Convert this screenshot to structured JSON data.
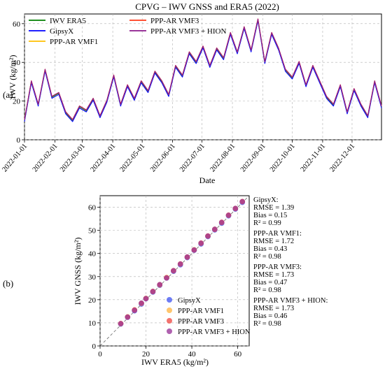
{
  "figure": {
    "panel_a_label": "(a)",
    "panel_b_label": "(b)"
  },
  "chart_data": [
    {
      "type": "line",
      "title": "CPVG – IWV GNSS and ERA5 (2022)",
      "xlabel": "Date",
      "ylabel": "IWV (kg/m²)",
      "xlim": [
        "2022-01-01",
        "2022-12-31"
      ],
      "ylim": [
        0,
        65
      ],
      "yticks": [
        0,
        20,
        40,
        60
      ],
      "xticks": [
        "2022-01-01",
        "2022-02-01",
        "2022-03-01",
        "2022-04-01",
        "2022-05-01",
        "2022-06-01",
        "2022-07-01",
        "2022-08-01",
        "2022-09-01",
        "2022-10-01",
        "2022-11-01",
        "2022-12-01"
      ],
      "grid": true,
      "legend_position": "top-left",
      "series": [
        {
          "name": "IWV ERA5",
          "color": "#008000"
        },
        {
          "name": "GipsyX",
          "color": "#0000ff"
        },
        {
          "name": "PPP-AR VMF1",
          "color": "#ffbf00"
        },
        {
          "name": "PPP-AR VMF3",
          "color": "#ff3a1a"
        },
        {
          "name": "PPP-AR VMF3 + HION",
          "color": "#8b1a8b"
        }
      ],
      "x": [
        "2022-01-01",
        "2022-01-08",
        "2022-01-15",
        "2022-01-22",
        "2022-01-29",
        "2022-02-05",
        "2022-02-12",
        "2022-02-19",
        "2022-02-26",
        "2022-03-05",
        "2022-03-12",
        "2022-03-19",
        "2022-03-26",
        "2022-04-02",
        "2022-04-09",
        "2022-04-16",
        "2022-04-23",
        "2022-04-30",
        "2022-05-07",
        "2022-05-14",
        "2022-05-21",
        "2022-05-28",
        "2022-06-04",
        "2022-06-11",
        "2022-06-18",
        "2022-06-25",
        "2022-07-02",
        "2022-07-09",
        "2022-07-16",
        "2022-07-23",
        "2022-07-30",
        "2022-08-06",
        "2022-08-13",
        "2022-08-20",
        "2022-08-27",
        "2022-09-03",
        "2022-09-10",
        "2022-09-17",
        "2022-09-24",
        "2022-10-01",
        "2022-10-08",
        "2022-10-15",
        "2022-10-22",
        "2022-10-29",
        "2022-11-05",
        "2022-11-12",
        "2022-11-19",
        "2022-11-26",
        "2022-12-03",
        "2022-12-10",
        "2022-12-17",
        "2022-12-24",
        "2022-12-31"
      ],
      "values": [
        10,
        30,
        18,
        36,
        22,
        24,
        14,
        10,
        17,
        15,
        21,
        12,
        20,
        33,
        18,
        28,
        21,
        30,
        25,
        35,
        30,
        23,
        38,
        33,
        45,
        40,
        48,
        38,
        47,
        42,
        55,
        45,
        58,
        46,
        62,
        40,
        55,
        47,
        36,
        32,
        40,
        28,
        38,
        30,
        22,
        18,
        28,
        14,
        26,
        18,
        12,
        30,
        17
      ]
    },
    {
      "type": "scatter",
      "xlabel": "IWV ERA5 (kg/m²)",
      "ylabel": "IWV GNSS (kg/m²)",
      "xlim": [
        0,
        65
      ],
      "ylim": [
        0,
        65
      ],
      "xticks": [
        0,
        20,
        40,
        60
      ],
      "yticks": [
        0,
        10,
        20,
        30,
        40,
        50,
        60
      ],
      "grid": true,
      "legend_position": "bottom-right",
      "series": [
        {
          "name": "GipsyX",
          "color": "#4a5cf2",
          "x": [
            9,
            12,
            15,
            18,
            20,
            23,
            26,
            29,
            32,
            35,
            38,
            41,
            44,
            47,
            50,
            53,
            56,
            59,
            62
          ],
          "y": [
            9.5,
            12.4,
            15.2,
            18.1,
            20.4,
            23.3,
            26.2,
            29.4,
            32.3,
            35.1,
            38.2,
            41.4,
            44.1,
            47.3,
            50.2,
            53.1,
            56.3,
            59.2,
            62.1
          ]
        },
        {
          "name": "PPP-AR VMF1",
          "color": "#ffb84a",
          "x": [
            9,
            12,
            15,
            18,
            20,
            23,
            26,
            29,
            32,
            35,
            38,
            41,
            44,
            47,
            50,
            53,
            56,
            59,
            62
          ],
          "y": [
            9.6,
            12.6,
            15.5,
            18.4,
            20.6,
            23.5,
            26.4,
            29.6,
            32.5,
            35.4,
            38.5,
            41.6,
            44.4,
            47.5,
            50.5,
            53.4,
            56.5,
            59.5,
            62.4
          ]
        },
        {
          "name": "PPP-AR VMF3",
          "color": "#f0504a",
          "x": [
            9,
            12,
            15,
            18,
            20,
            23,
            26,
            29,
            32,
            35,
            38,
            41,
            44,
            47,
            50,
            53,
            56,
            59,
            62
          ],
          "y": [
            9.7,
            12.5,
            15.6,
            18.5,
            20.5,
            23.6,
            26.5,
            29.5,
            32.6,
            35.5,
            38.4,
            41.5,
            44.5,
            47.6,
            50.4,
            53.5,
            56.6,
            59.4,
            62.5
          ]
        },
        {
          "name": "PPP-AR VMF3 + HION",
          "color": "#9b3a9b",
          "x": [
            9,
            12,
            15,
            18,
            20,
            23,
            26,
            29,
            32,
            35,
            38,
            41,
            44,
            47,
            50,
            53,
            56,
            59,
            62
          ],
          "y": [
            9.6,
            12.5,
            15.4,
            18.5,
            20.5,
            23.5,
            26.5,
            29.4,
            32.5,
            35.4,
            38.5,
            41.5,
            44.4,
            47.5,
            50.5,
            53.4,
            56.5,
            59.5,
            62.4
          ]
        }
      ],
      "stats": [
        {
          "name": "GipsyX:",
          "rmse": "RMSE = 1.39",
          "bias": "Bias = 0.15",
          "r2": "R² = 0.99"
        },
        {
          "name": "PPP-AR VMF1:",
          "rmse": "RMSE = 1.72",
          "bias": "Bias = 0.43",
          "r2": "R² = 0.98"
        },
        {
          "name": "PPP-AR VMF3:",
          "rmse": "RMSE = 1.73",
          "bias": "Bias = 0.47",
          "r2": "R² = 0.98"
        },
        {
          "name": "PPP-AR VMF3 + HION:",
          "rmse": "RMSE = 1.73",
          "bias": "Bias = 0.46",
          "r2": "R² = 0.98"
        }
      ]
    }
  ]
}
